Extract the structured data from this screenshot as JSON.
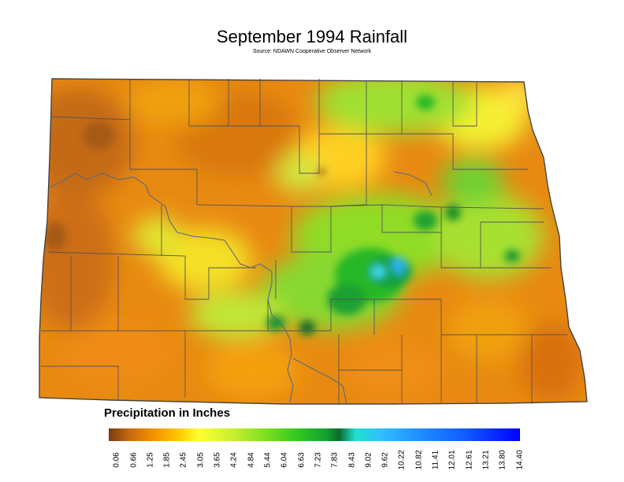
{
  "title": "September 1994 Rainfall",
  "source": "Source: NDAWN Cooperative Observer Network",
  "legend": {
    "title": "Precipitation in Inches",
    "ticks": [
      "0.06",
      "0.66",
      "1.25",
      "1.85",
      "2.45",
      "3.05",
      "3.65",
      "4.24",
      "4.84",
      "5.44",
      "6.04",
      "6.63",
      "7.23",
      "7.83",
      "8.43",
      "9.02",
      "9.62",
      "10.22",
      "10.82",
      "11.41",
      "12.01",
      "12.61",
      "13.21",
      "13.80",
      "14.40"
    ]
  },
  "colors": {
    "dry": "#c46a10",
    "moderate": "#ffff30",
    "wet": "#30c820",
    "very_wet": "#30c0ff",
    "max": "#0000ff",
    "county_lines": "#555555"
  }
}
